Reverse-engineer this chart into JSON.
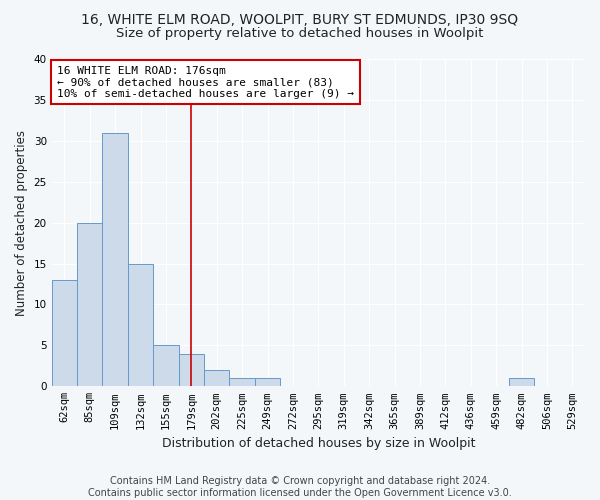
{
  "title": "16, WHITE ELM ROAD, WOOLPIT, BURY ST EDMUNDS, IP30 9SQ",
  "subtitle": "Size of property relative to detached houses in Woolpit",
  "xlabel": "Distribution of detached houses by size in Woolpit",
  "ylabel": "Number of detached properties",
  "bin_labels": [
    "62sqm",
    "85sqm",
    "109sqm",
    "132sqm",
    "155sqm",
    "179sqm",
    "202sqm",
    "225sqm",
    "249sqm",
    "272sqm",
    "295sqm",
    "319sqm",
    "342sqm",
    "365sqm",
    "389sqm",
    "412sqm",
    "436sqm",
    "459sqm",
    "482sqm",
    "506sqm",
    "529sqm"
  ],
  "bin_values": [
    13,
    20,
    31,
    15,
    5,
    4,
    2,
    1,
    1,
    0,
    0,
    0,
    0,
    0,
    0,
    0,
    0,
    0,
    1,
    0,
    0
  ],
  "bar_color": "#cddaea",
  "bar_edge_color": "#6699cc",
  "vline_x_index": 5.0,
  "vline_color": "#cc0000",
  "annotation_line1": "16 WHITE ELM ROAD: 176sqm",
  "annotation_line2": "← 90% of detached houses are smaller (83)",
  "annotation_line3": "10% of semi-detached houses are larger (9) →",
  "annotation_box_color": "#ffffff",
  "annotation_box_edge": "#cc0000",
  "ylim": [
    0,
    40
  ],
  "yticks": [
    0,
    5,
    10,
    15,
    20,
    25,
    30,
    35,
    40
  ],
  "footer_text": "Contains HM Land Registry data © Crown copyright and database right 2024.\nContains public sector information licensed under the Open Government Licence v3.0.",
  "title_fontsize": 10,
  "subtitle_fontsize": 9.5,
  "xlabel_fontsize": 9,
  "ylabel_fontsize": 8.5,
  "tick_fontsize": 7.5,
  "annotation_fontsize": 8,
  "footer_fontsize": 7,
  "bg_color": "#f4f7fa",
  "plot_bg_color": "#f4f7fa",
  "grid_color": "#ffffff",
  "text_color": "#222222"
}
